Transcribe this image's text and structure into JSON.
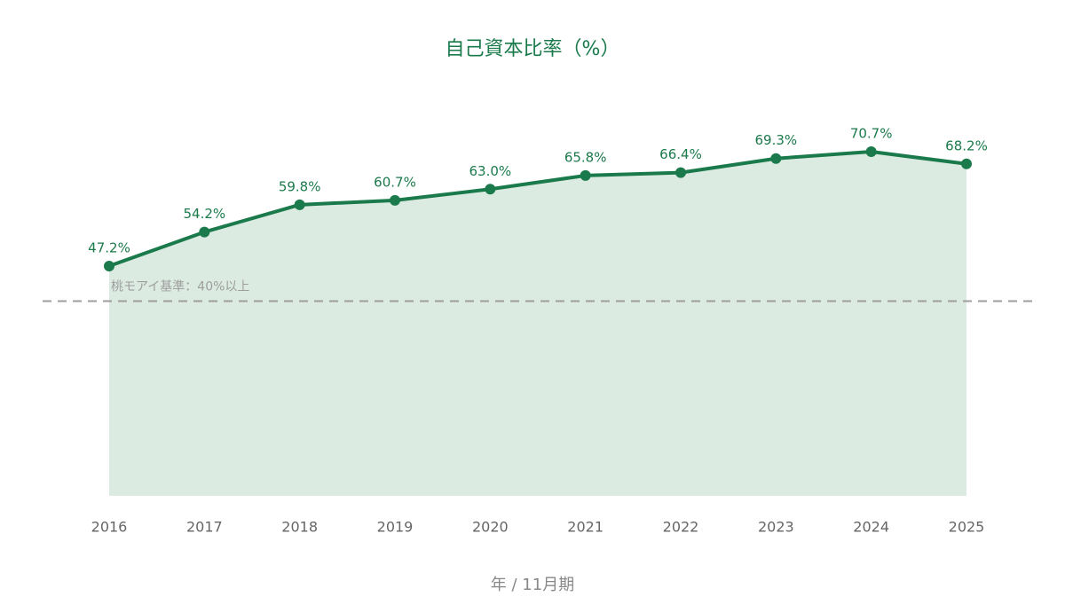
{
  "chart_data": {
    "type": "line",
    "title": "自己資本比率（%）",
    "x_label": "年 / 11月期",
    "categories": [
      "2016",
      "2017",
      "2018",
      "2019",
      "2020",
      "2021",
      "2022",
      "2023",
      "2024",
      "2025"
    ],
    "series": [
      {
        "name": "自己資本比率",
        "color": "#1b7a4b",
        "values": [
          47.2,
          54.2,
          59.8,
          60.7,
          63.0,
          65.8,
          66.4,
          69.3,
          70.7,
          68.2
        ],
        "value_labels": [
          "47.2%",
          "54.2%",
          "59.8%",
          "60.7%",
          "63.0%",
          "65.8%",
          "66.4%",
          "69.3%",
          "70.7%",
          "68.2%"
        ]
      }
    ],
    "area_fill": "#dcebe2",
    "ylim": [
      0,
      80
    ],
    "reference_line": {
      "value": 40,
      "label": "桃モアイ基準：40%以上",
      "color": "#9e9e9e"
    }
  }
}
